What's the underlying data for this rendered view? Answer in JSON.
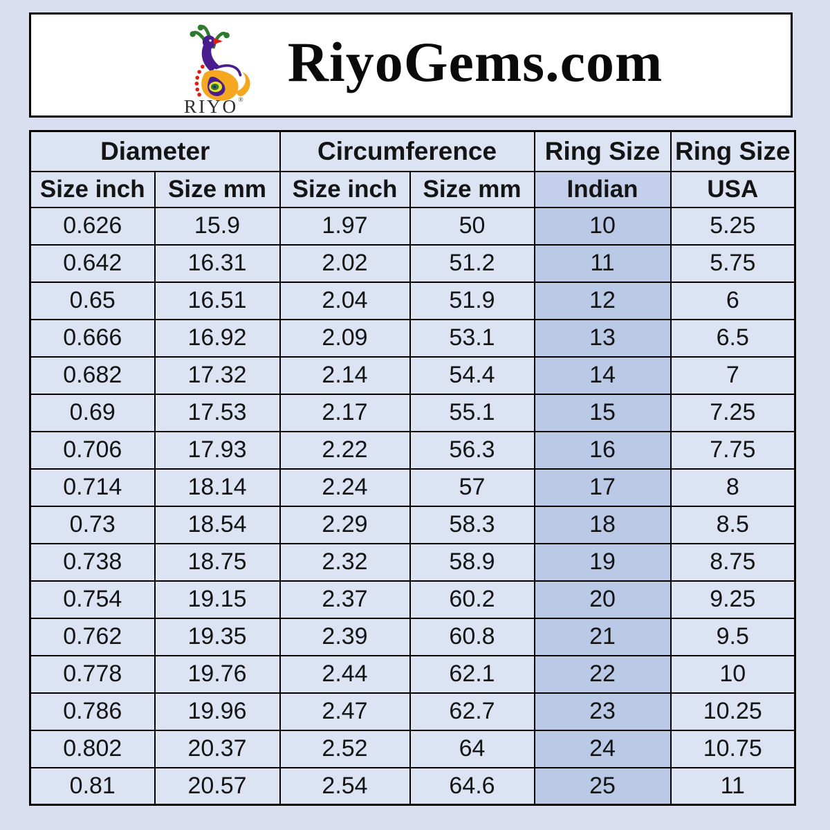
{
  "header": {
    "site_title": "RiyoGems.com",
    "logo": {
      "brand": "RIYO",
      "registered_mark": "®"
    }
  },
  "table": {
    "groups": [
      {
        "label": "Diameter"
      },
      {
        "label": "Circumference"
      },
      {
        "label": "Ring Size"
      },
      {
        "label": "Ring Size"
      }
    ],
    "columns": [
      "Size inch",
      "Size mm",
      "Size inch",
      "Size mm",
      "Indian",
      "USA"
    ],
    "rows": [
      [
        "0.626",
        "15.9",
        "1.97",
        "50",
        "10",
        "5.25"
      ],
      [
        "0.642",
        "16.31",
        "2.02",
        "51.2",
        "11",
        "5.75"
      ],
      [
        "0.65",
        "16.51",
        "2.04",
        "51.9",
        "12",
        "6"
      ],
      [
        "0.666",
        "16.92",
        "2.09",
        "53.1",
        "13",
        "6.5"
      ],
      [
        "0.682",
        "17.32",
        "2.14",
        "54.4",
        "14",
        "7"
      ],
      [
        "0.69",
        "17.53",
        "2.17",
        "55.1",
        "15",
        "7.25"
      ],
      [
        "0.706",
        "17.93",
        "2.22",
        "56.3",
        "16",
        "7.75"
      ],
      [
        "0.714",
        "18.14",
        "2.24",
        "57",
        "17",
        "8"
      ],
      [
        "0.73",
        "18.54",
        "2.29",
        "58.3",
        "18",
        "8.5"
      ],
      [
        "0.738",
        "18.75",
        "2.32",
        "58.9",
        "19",
        "8.75"
      ],
      [
        "0.754",
        "19.15",
        "2.37",
        "60.2",
        "20",
        "9.25"
      ],
      [
        "0.762",
        "19.35",
        "2.39",
        "60.8",
        "21",
        "9.5"
      ],
      [
        "0.778",
        "19.76",
        "2.44",
        "62.1",
        "22",
        "10"
      ],
      [
        "0.786",
        "19.96",
        "2.47",
        "62.7",
        "23",
        "10.25"
      ],
      [
        "0.802",
        "20.37",
        "2.52",
        "64",
        "24",
        "10.75"
      ],
      [
        "0.81",
        "20.57",
        "2.54",
        "64.6",
        "25",
        "11"
      ]
    ]
  },
  "colors": {
    "page_background": "#d9dff1",
    "header_box_background": "#ffffff",
    "cell_background": "#dce3f3",
    "indian_header_background": "#c4d0eb",
    "indian_column_background": "#b9c9e6",
    "border": "#000000",
    "logo_green": "#2e7b2f",
    "logo_purple": "#4a1d8f",
    "logo_orange": "#f6a722",
    "logo_red": "#dd1f10"
  }
}
